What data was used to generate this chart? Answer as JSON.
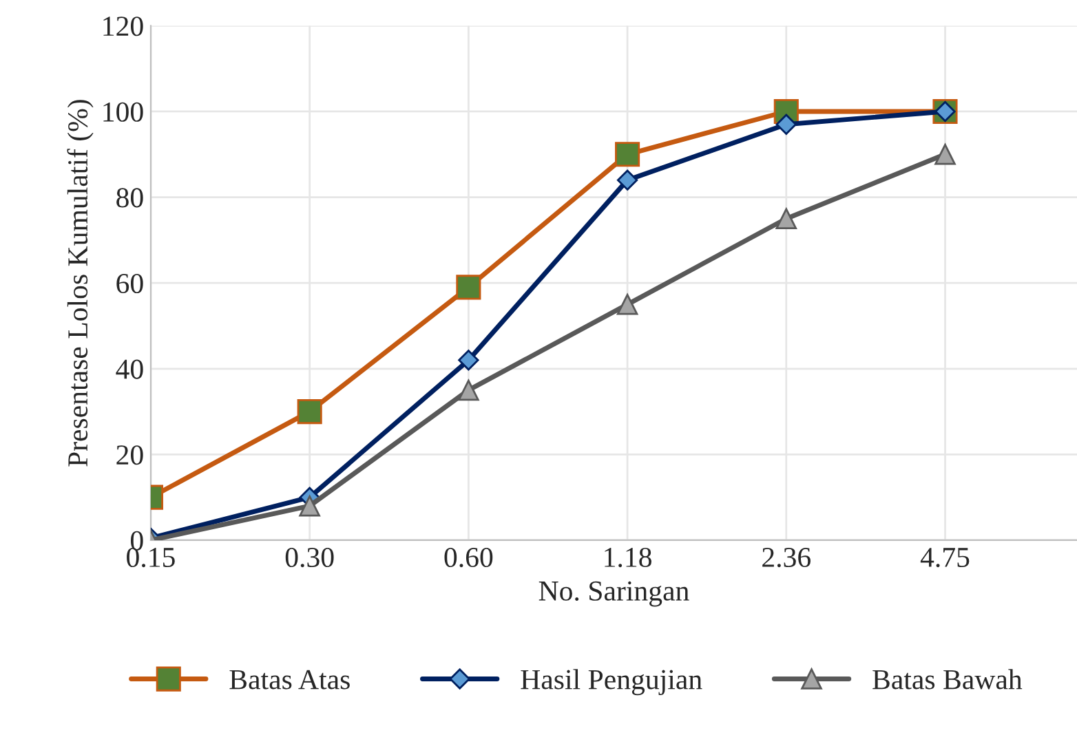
{
  "chart_data": {
    "type": "line",
    "xlabel": "No. Saringan",
    "ylabel": "Presentase Lolos Kumulatif (%)",
    "categories": [
      "0.15",
      "0.30",
      "0.60",
      "1.18",
      "2.36",
      "4.75"
    ],
    "series": [
      {
        "name": "Batas Atas",
        "color": "#c55a11",
        "marker": "square",
        "values": [
          10,
          30,
          59,
          90,
          100,
          100
        ]
      },
      {
        "name": "Hasil Pengujian",
        "color": "#002060",
        "marker": "diamond",
        "values": [
          0.5,
          10,
          42,
          84,
          97,
          100
        ]
      },
      {
        "name": "Batas Bawah",
        "color": "#595959",
        "marker": "triangle",
        "values": [
          0,
          8,
          35,
          55,
          75,
          90
        ]
      }
    ],
    "ylim": [
      0,
      120
    ],
    "yticks": [
      0,
      20,
      40,
      60,
      80,
      100,
      120
    ],
    "grid": true,
    "legend": "bottom",
    "line_style": "solid"
  }
}
